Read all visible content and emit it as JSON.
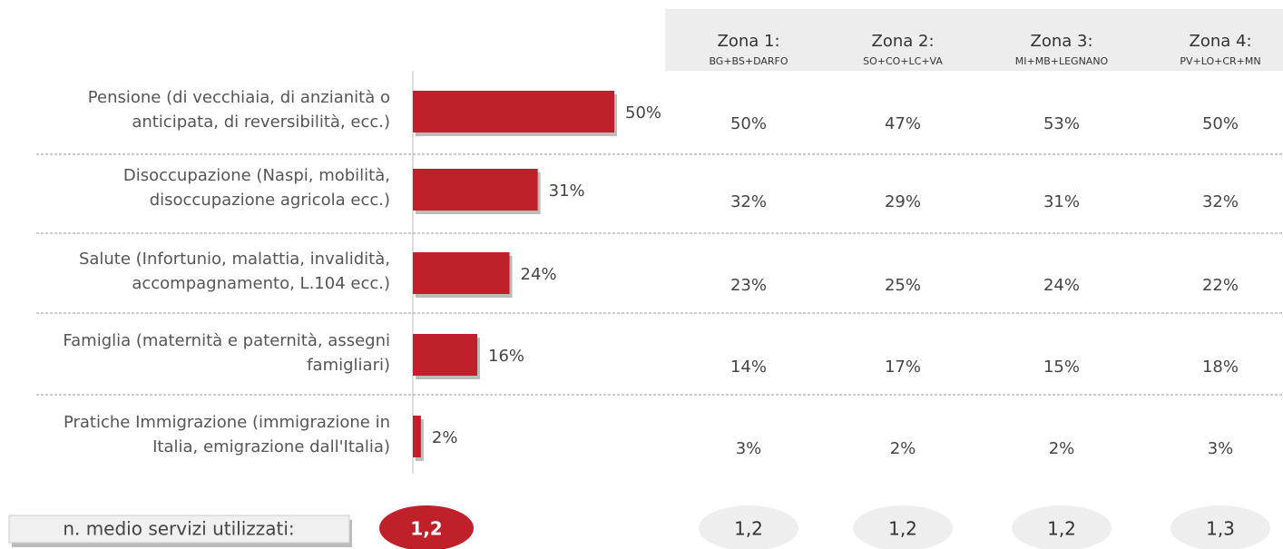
{
  "chart_data": {
    "type": "bar",
    "orientation": "horizontal",
    "color": "#c0202a",
    "categories": [
      [
        "Pensione (di vecchiaia, di anzianità o",
        "anticipata, di reversibilità, ecc.)"
      ],
      [
        "Disoccupazione (Naspi, mobilità,",
        "disoccupazione agricola ecc.)"
      ],
      [
        "Salute (Infortunio, malattia, invalidità,",
        "accompagnamento, L.104 ecc.)"
      ],
      [
        "Famiglia (maternità e paternità, assegni",
        "famigliari)"
      ],
      [
        "Pratiche Immigrazione (immigrazione in",
        "Italia, emigrazione dall'Italia)"
      ]
    ],
    "values": [
      50,
      31,
      24,
      16,
      2
    ],
    "value_labels": [
      "50%",
      "31%",
      "24%",
      "16%",
      "2%"
    ],
    "zones": [
      {
        "name": "Zona 1:",
        "sub": "BG+BS+DARFO",
        "values": [
          "50%",
          "32%",
          "23%",
          "14%",
          "3%"
        ],
        "average": "1,2"
      },
      {
        "name": "Zona 2:",
        "sub": "SO+CO+LC+VA",
        "values": [
          "47%",
          "29%",
          "25%",
          "17%",
          "2%"
        ],
        "average": "1,2"
      },
      {
        "name": "Zona 3:",
        "sub": "MI+MB+LEGNANO",
        "values": [
          "53%",
          "31%",
          "24%",
          "15%",
          "2%"
        ],
        "average": "1,2"
      },
      {
        "name": "Zona 4:",
        "sub": "PV+LO+CR+MN",
        "values": [
          "50%",
          "32%",
          "22%",
          "18%",
          "3%"
        ],
        "average": "1,3"
      }
    ],
    "average_label": "n. medio servizi utilizzati:",
    "average": "1,2"
  }
}
